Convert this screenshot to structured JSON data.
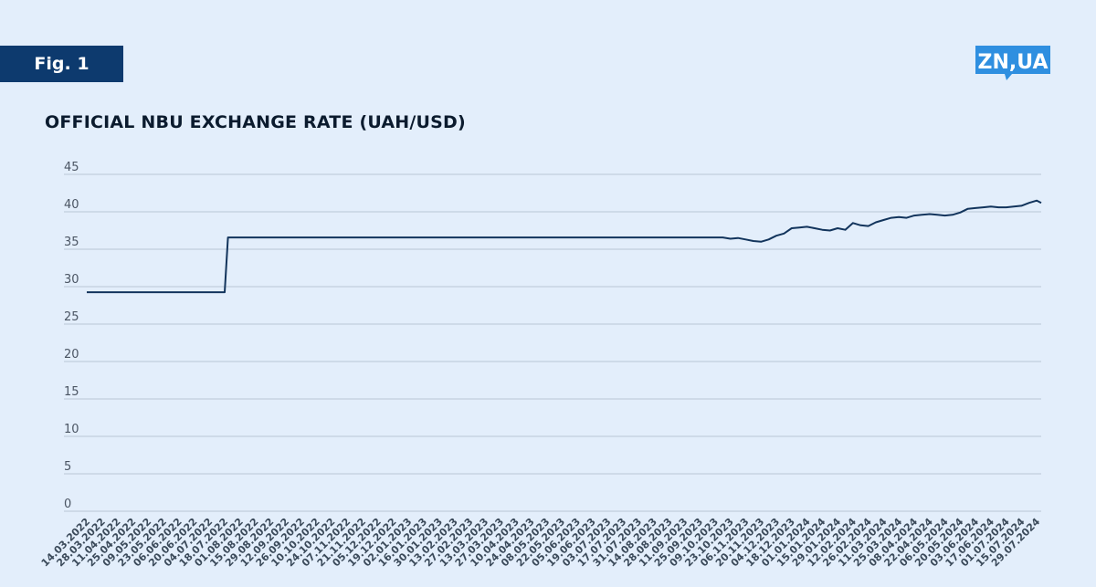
{
  "figure_label": "Fig. 1",
  "logo_text": "ZN,UA",
  "colors": {
    "accent": "#0d3a6e",
    "logo": "#2f8fe0",
    "line": "#12345c",
    "background": "#e3eefb"
  },
  "chart_data": {
    "type": "line",
    "title": "OFFICIAL NBU EXCHANGE RATE (UAH/USD)",
    "xlabel": "",
    "ylabel": "",
    "ylim": [
      0,
      45
    ],
    "y_ticks": [
      "0",
      "5",
      "10",
      "15",
      "20",
      "25",
      "30",
      "35",
      "40",
      "45"
    ],
    "grid": true,
    "x_tick_labels": [
      "14.03.2022",
      "28.03.2022",
      "11.04.2022",
      "25.04.2022",
      "09.05.2022",
      "23.05.2022",
      "06.06.2022",
      "20.06.2022",
      "04.07.2022",
      "18.07.2022",
      "01.08.2022",
      "15.08.2022",
      "29.08.2022",
      "12.09.2022",
      "26.09.2022",
      "10.10.2022",
      "24.10.2022",
      "07.11.2022",
      "21.11.2022",
      "05.12.2022",
      "19.12.2022",
      "02.01.2023",
      "16.01.2023",
      "30.01.2023",
      "13.02.2023",
      "27.02.2023",
      "13.03.2023",
      "27.03.2023",
      "10.04.2023",
      "24.04.2023",
      "08.05.2023",
      "22.05.2023",
      "05.06.2023",
      "19.06.2023",
      "03.07.2023",
      "17.07.2023",
      "31.07.2023",
      "14.08.2023",
      "28.08.2023",
      "11.09.2023",
      "25.09.2023",
      "09.10.2023",
      "23.10.2023",
      "06.11.2023",
      "20.11.2023",
      "04.12.2023",
      "18.12.2023",
      "01.01.2024",
      "15.01.2024",
      "29.01.2024",
      "12.02.2024",
      "26.02.2024",
      "11.03.2024",
      "25.03.2024",
      "08.04.2024",
      "22.04.2024",
      "06.05.2024",
      "20.05.2024",
      "03.06.2024",
      "17.06.2024",
      "01.07.2024",
      "15.07.2024",
      "29.07.2024"
    ],
    "series": [
      {
        "x": [
          "14.03.2022",
          "18.07.2022",
          "21.07.2022",
          "09.10.2023",
          "16.10.2023",
          "23.10.2023",
          "30.10.2023",
          "06.11.2023",
          "13.11.2023",
          "20.11.2023",
          "27.11.2023",
          "04.12.2023",
          "11.12.2023",
          "18.12.2023",
          "25.12.2023",
          "01.01.2024",
          "08.01.2024",
          "15.01.2024",
          "22.01.2024",
          "29.01.2024",
          "05.02.2024",
          "12.02.2024",
          "19.02.2024",
          "26.02.2024",
          "04.03.2024",
          "11.03.2024",
          "18.03.2024",
          "25.03.2024",
          "01.04.2024",
          "08.04.2024",
          "15.04.2024",
          "22.04.2024",
          "29.04.2024",
          "06.05.2024",
          "13.05.2024",
          "20.05.2024",
          "27.05.2024",
          "03.06.2024",
          "10.06.2024",
          "17.06.2024",
          "24.06.2024",
          "01.07.2024",
          "08.07.2024",
          "15.07.2024",
          "22.07.2024",
          "29.07.2024",
          "02.08.2024"
        ],
        "values": [
          29.25,
          29.25,
          36.57,
          36.57,
          36.57,
          36.4,
          36.5,
          36.3,
          36.1,
          36.0,
          36.3,
          36.8,
          37.1,
          37.8,
          37.9,
          38.0,
          37.8,
          37.6,
          37.5,
          37.8,
          37.6,
          38.5,
          38.2,
          38.1,
          38.6,
          38.9,
          39.2,
          39.3,
          39.2,
          39.5,
          39.6,
          39.7,
          39.6,
          39.5,
          39.6,
          39.9,
          40.4,
          40.5,
          40.6,
          40.7,
          40.6,
          40.6,
          40.7,
          40.8,
          41.2,
          41.5,
          41.2
        ]
      }
    ]
  }
}
